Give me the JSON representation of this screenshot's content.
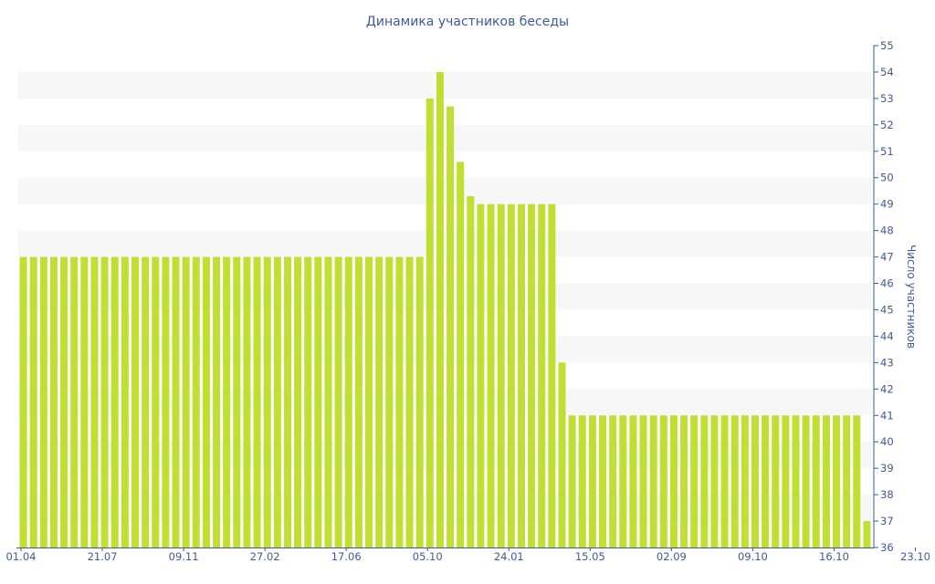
{
  "chart_data": {
    "type": "bar",
    "title": "Динамика участников беседы",
    "ylabel": "Число участников",
    "xlabel": "",
    "ylim": [
      36,
      55
    ],
    "y_axis_position": "right",
    "x_tick_labels": [
      "01.04",
      "21.07",
      "09.11",
      "27.02",
      "17.06",
      "05.10",
      "24.01",
      "15.05",
      "02.09",
      "09.10",
      "16.10",
      "23.10"
    ],
    "values": [
      47,
      47,
      47,
      47,
      47,
      47,
      47,
      47,
      47,
      47,
      47,
      47,
      47,
      47,
      47,
      47,
      47,
      47,
      47,
      47,
      47,
      47,
      47,
      47,
      47,
      47,
      47,
      47,
      47,
      47,
      47,
      47,
      47,
      47,
      47,
      47,
      47,
      47,
      47,
      47,
      53,
      54,
      52.7,
      50.6,
      49.3,
      49,
      49,
      49,
      49,
      49,
      49,
      49,
      49,
      43,
      41,
      41,
      41,
      41,
      41,
      41,
      41,
      41,
      41,
      41,
      41,
      41,
      41,
      41,
      41,
      41,
      41,
      41,
      41,
      41,
      41,
      41,
      41,
      41,
      41,
      41,
      41,
      41,
      41,
      37
    ],
    "colors": {
      "bar": "#bfdf33",
      "text": "#3e5a99",
      "band": "#f7f7f7"
    }
  }
}
